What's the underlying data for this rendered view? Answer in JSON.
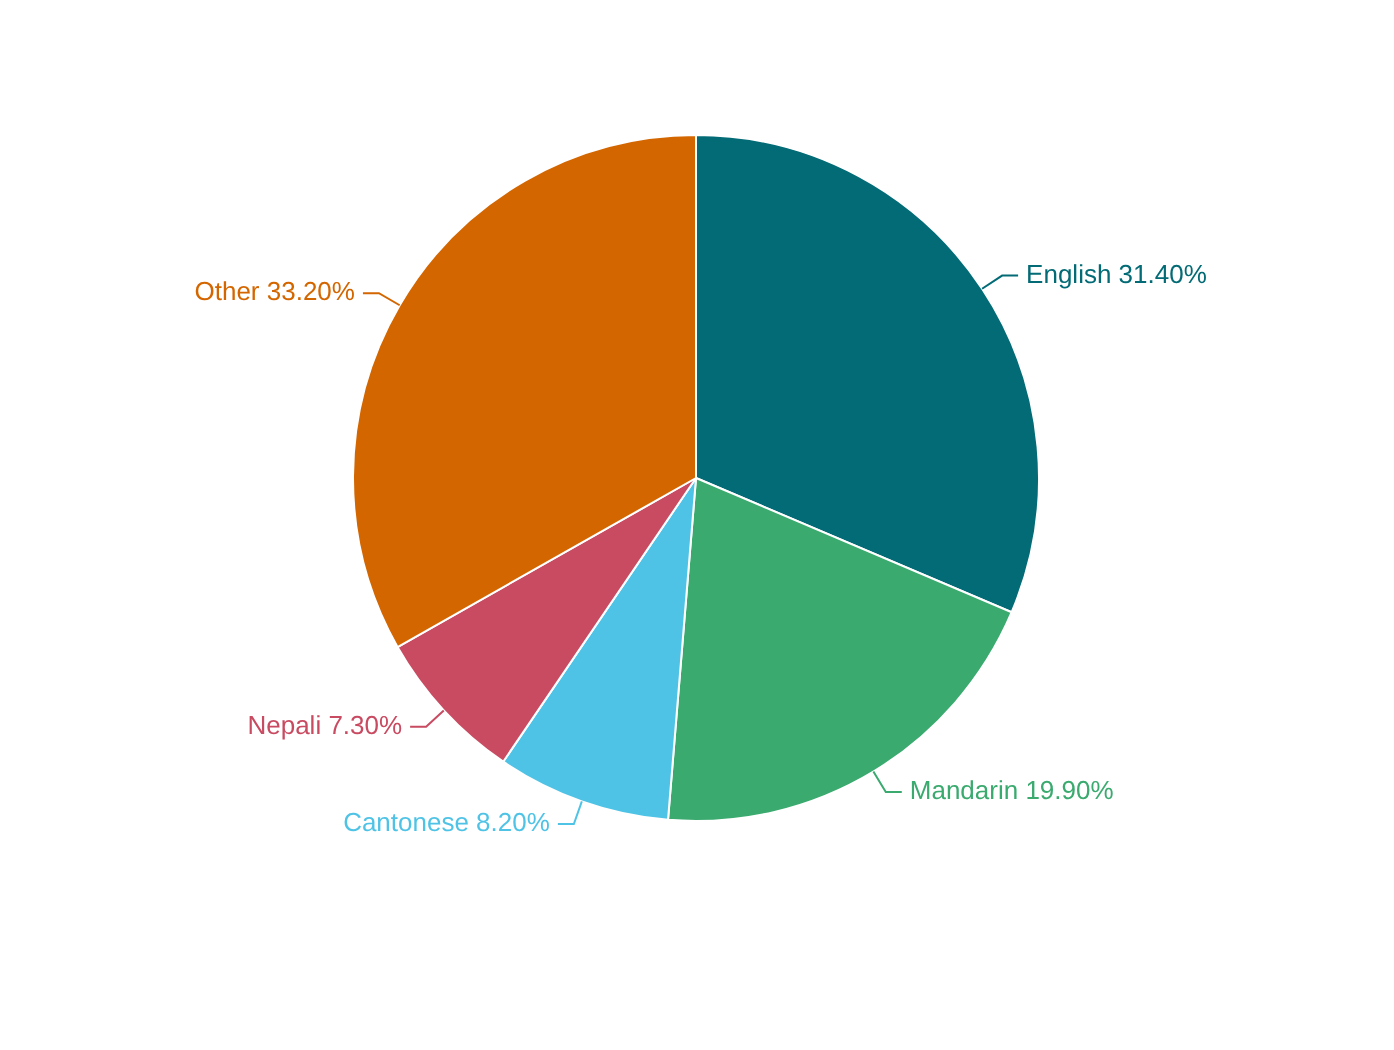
{
  "chart_data": {
    "type": "pie",
    "categories": [
      "English",
      "Mandarin",
      "Cantonese",
      "Nepali",
      "Other"
    ],
    "values": [
      31.4,
      19.9,
      8.2,
      7.3,
      33.2
    ],
    "value_labels": [
      "31.40%",
      "19.90%",
      "8.20%",
      "7.30%",
      "33.20%"
    ],
    "colors": [
      "#036b75",
      "#3aaa6f",
      "#4fc3e6",
      "#c94b62",
      "#d46600"
    ],
    "legend": false
  }
}
